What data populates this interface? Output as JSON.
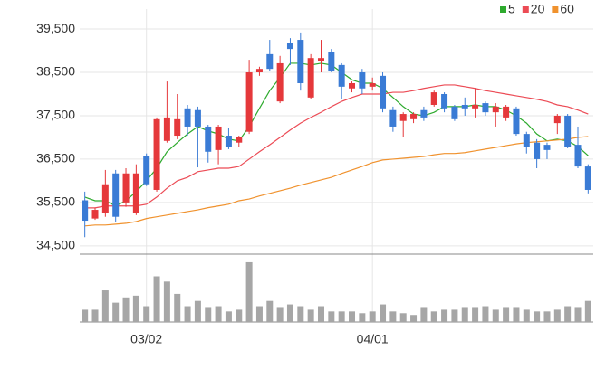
{
  "chart_data": {
    "type": "candlestick",
    "x": [
      null,
      null,
      null,
      null,
      null,
      null,
      "03/02",
      null,
      null,
      null,
      null,
      null,
      null,
      null,
      null,
      null,
      null,
      null,
      null,
      null,
      null,
      null,
      null,
      null,
      null,
      null,
      null,
      null,
      "04/01",
      null,
      null,
      null,
      null,
      null,
      null,
      null,
      null,
      null,
      null,
      null,
      null,
      null,
      null,
      null,
      null,
      null,
      null,
      null,
      null,
      null
    ],
    "open": [
      35550,
      35130,
      35250,
      36170,
      35500,
      35250,
      36580,
      35790,
      36920,
      37040,
      37670,
      37630,
      37250,
      36710,
      37040,
      36880,
      37130,
      38500,
      38920,
      37830,
      39170,
      39250,
      37920,
      38750,
      38960,
      38670,
      38130,
      38500,
      38170,
      38420,
      37630,
      37380,
      37420,
      37630,
      37750,
      38000,
      37710,
      37750,
      37670,
      37790,
      37580,
      37460,
      37670,
      37080,
      36880,
      36830,
      37330,
      37500,
      36830,
      36330
    ],
    "high": [
      35750,
      35380,
      36250,
      36250,
      36290,
      36380,
      36630,
      37460,
      38290,
      38000,
      37750,
      37710,
      37290,
      37290,
      37210,
      37040,
      38790,
      38630,
      39250,
      38880,
      39290,
      39420,
      38920,
      39250,
      39040,
      38710,
      38290,
      38580,
      38380,
      38500,
      37710,
      37580,
      37580,
      37710,
      38080,
      38040,
      37750,
      37920,
      38130,
      37830,
      37790,
      37750,
      37710,
      37130,
      36960,
      36880,
      37540,
      37540,
      37250,
      36380
    ],
    "low": [
      34700,
      35100,
      35170,
      35040,
      35400,
      35210,
      35880,
      35750,
      36880,
      36960,
      37040,
      36310,
      36420,
      36380,
      36730,
      36790,
      37080,
      38420,
      38540,
      37790,
      38670,
      38080,
      37880,
      38500,
      38500,
      37880,
      38040,
      38000,
      38080,
      37580,
      37130,
      37000,
      37330,
      37380,
      37710,
      37580,
      37380,
      37500,
      37460,
      37500,
      37250,
      37380,
      37040,
      36630,
      36290,
      36500,
      37080,
      36750,
      36290,
      35710
    ],
    "close": [
      35080,
      35330,
      35920,
      35170,
      36170,
      36170,
      35920,
      37420,
      37460,
      37420,
      37250,
      37250,
      36670,
      37250,
      36790,
      37000,
      38500,
      38580,
      38580,
      38710,
      39040,
      38250,
      38830,
      38830,
      38540,
      38170,
      38250,
      38130,
      38250,
      37670,
      37250,
      37540,
      37540,
      37460,
      38040,
      37670,
      37420,
      37670,
      37750,
      37580,
      37710,
      37710,
      37080,
      36790,
      36500,
      36710,
      37500,
      36790,
      36330,
      35790
    ],
    "up_color": "#e5383b",
    "down_color": "#3a7bd5",
    "series": [
      {
        "name": "5",
        "color": "#2eaa2e",
        "values": [
          35625,
          35540,
          35540,
          35420,
          35540,
          35750,
          36000,
          36290,
          36670,
          36880,
          37080,
          37250,
          37150,
          37080,
          36960,
          36920,
          37250,
          37670,
          38080,
          38380,
          38710,
          38710,
          38670,
          38710,
          38670,
          38500,
          38330,
          38250,
          38250,
          38130,
          37920,
          37710,
          37540,
          37500,
          37580,
          37710,
          37710,
          37710,
          37750,
          37710,
          37710,
          37630,
          37500,
          37330,
          37080,
          36920,
          36960,
          36920,
          36790,
          36580
        ]
      },
      {
        "name": "20",
        "color": "#ec4b55",
        "values": [
          35375,
          35375,
          35420,
          35420,
          35420,
          35420,
          35460,
          35625,
          35830,
          36000,
          36080,
          36210,
          36250,
          36290,
          36290,
          36330,
          36500,
          36670,
          36830,
          37000,
          37170,
          37330,
          37460,
          37580,
          37710,
          37830,
          37920,
          38000,
          38000,
          38000,
          38040,
          38040,
          38080,
          38130,
          38170,
          38210,
          38210,
          38170,
          38130,
          38080,
          38040,
          38000,
          37960,
          37920,
          37880,
          37830,
          37750,
          37710,
          37630,
          37540
        ]
      },
      {
        "name": "60",
        "color": "#f0922e",
        "values": [
          34960,
          34980,
          34980,
          35000,
          35020,
          35060,
          35130,
          35170,
          35210,
          35250,
          35290,
          35330,
          35380,
          35420,
          35460,
          35540,
          35580,
          35650,
          35710,
          35770,
          35830,
          35900,
          35960,
          36020,
          36080,
          36170,
          36250,
          36330,
          36420,
          36480,
          36500,
          36520,
          36540,
          36560,
          36600,
          36630,
          36630,
          36650,
          36690,
          36730,
          36770,
          36810,
          36850,
          36880,
          36900,
          36920,
          36940,
          36960,
          37000,
          37020
        ]
      }
    ],
    "volume": {
      "color": "#a6a6a6",
      "lim": [
        0,
        70
      ],
      "values": [
        14,
        14,
        36,
        22,
        28,
        30,
        18,
        52,
        46,
        32,
        18,
        24,
        16,
        18,
        12,
        14,
        68,
        18,
        24,
        16,
        20,
        18,
        14,
        18,
        12,
        12,
        12,
        10,
        12,
        20,
        12,
        10,
        8,
        16,
        12,
        14,
        14,
        16,
        16,
        18,
        14,
        16,
        16,
        14,
        12,
        12,
        14,
        18,
        16,
        24
      ]
    },
    "ylim": [
      34330,
      39960
    ],
    "yticks": [
      {
        "value": 34500,
        "label": "34,500"
      },
      {
        "value": 35500,
        "label": "35,500"
      },
      {
        "value": 36500,
        "label": "36,500"
      },
      {
        "value": 37500,
        "label": "37,500"
      },
      {
        "value": 38500,
        "label": "38,500"
      },
      {
        "value": 39500,
        "label": "39,500"
      }
    ],
    "grid": true,
    "legend": "top-right"
  }
}
